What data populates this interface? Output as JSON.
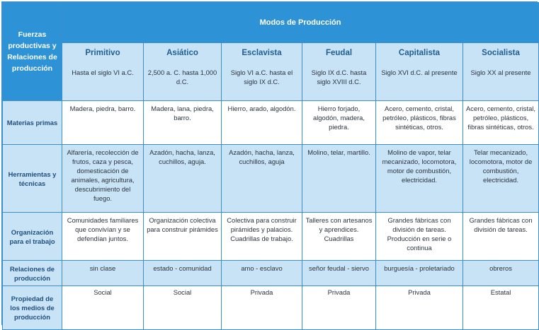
{
  "corner_header": "Fuerzas productivas y Relaciones de producción",
  "group_header": "Modos de Producción",
  "modes": [
    {
      "name": "Primitivo",
      "period": "Hasta el siglo VI a.C."
    },
    {
      "name": "Asiático",
      "period": "2,500 a. C. hasta 1,000 d.C."
    },
    {
      "name": "Esclavista",
      "period": "Siglo VI a.C. hasta el siglo IX d.C."
    },
    {
      "name": "Feudal",
      "period": "Siglo IX d.C. hasta siglo XVIII d.C."
    },
    {
      "name": "Capitalista",
      "period": "Siglo XVI d.C. al presente"
    },
    {
      "name": "Socialista",
      "period": "Siglo XX al presente"
    }
  ],
  "rows": [
    {
      "label": "Materias primas",
      "cells": [
        "Madera, piedra, barro.",
        "Madera, lana, piedra, barro.",
        "Hierro, arado, algodón.",
        "Hierro forjado, algodón, madera, piedra.",
        "Acero, cemento, cristal, petróleo, plásticos, fibras sintéticas, otros.",
        "Acero, cemento, cristal, petróleo, plásticos, fibras sintéticas, otros."
      ]
    },
    {
      "label": "Herramientas y técnicas",
      "cells": [
        "Alfarería, recolección de frutos, caza y pesca, domesticación de animales, agricultura, descubrimiento del fuego.",
        "Azadón, hacha, lanza, cuchillos, aguja.",
        "Azadón, hacha, lanza, cuchillos, aguja",
        "Molino, telar, martillo.",
        "Molino de vapor, telar mecanizado, locomotora, motor de combustión, electricidad.",
        "Telar mecanizado, locomotora, motor de combustión, electricidad."
      ]
    },
    {
      "label": "Organización para el trabajo",
      "cells": [
        "Comunidades familiares que convivían y se defendían juntos.",
        "Organización colectiva para construir pirámides",
        "Colectiva para construir pirámides y palacios. Cuadrillas de trabajo.",
        "Talleres con artesanos y aprendices. Cuadrillas",
        "Grandes fábricas con división de tareas. Producción en serie o continua",
        "Grandes fábricas con división de tareas."
      ]
    },
    {
      "label": "Relaciones de producción",
      "cells": [
        "sin clase",
        "estado - comunidad",
        "amo - esclavo",
        "señor feudal - siervo",
        "burguesía - proletariado",
        "obreros"
      ]
    },
    {
      "label": "Propiedad de los medios de producción",
      "cells": [
        "Social",
        "Social",
        "Privada",
        "Privada",
        "Privada",
        "Estatal"
      ]
    }
  ]
}
